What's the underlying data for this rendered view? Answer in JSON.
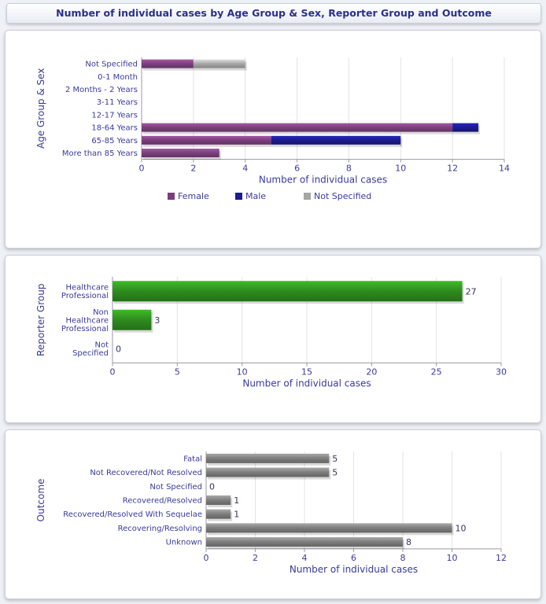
{
  "page_title": "Number of individual cases by Age Group & Sex, Reporter Group and Outcome",
  "chart_data": [
    {
      "type": "bar",
      "stacked": true,
      "orientation": "horizontal",
      "ylabel": "Age Group & Sex",
      "xlabel": "Number of individual cases",
      "categories": [
        "Not Specified",
        "0-1 Month",
        "2 Months - 2 Years",
        "3-11 Years",
        "12-17 Years",
        "18-64 Years",
        "65-85 Years",
        "More than 85 Years"
      ],
      "series": [
        {
          "name": "Female",
          "color": "#7b3f7c",
          "values": [
            2,
            0,
            0,
            0,
            0,
            12,
            5,
            3
          ]
        },
        {
          "name": "Male",
          "color": "#1c1c8c",
          "values": [
            0,
            0,
            0,
            0,
            0,
            1,
            5,
            0
          ]
        },
        {
          "name": "Not Specified",
          "color": "#a6a6a6",
          "values": [
            2,
            0,
            0,
            0,
            0,
            0,
            0,
            0
          ]
        }
      ],
      "xlim": [
        0,
        14
      ],
      "xticks": [
        0,
        2,
        4,
        6,
        8,
        10,
        12,
        14
      ],
      "legend": "bottom",
      "grid": true,
      "data_labels": false
    },
    {
      "type": "bar",
      "orientation": "horizontal",
      "ylabel": "Reporter Group",
      "xlabel": "Number of individual cases",
      "categories": [
        [
          "Healthcare",
          "Professional"
        ],
        [
          "Non",
          "Healthcare",
          "Professional"
        ],
        [
          "Not",
          "Specified"
        ]
      ],
      "values": [
        27,
        3,
        0
      ],
      "color": "#2e8b1e",
      "xlim": [
        0,
        30
      ],
      "xticks": [
        0,
        5,
        10,
        15,
        20,
        25,
        30
      ],
      "grid": true,
      "data_labels": true
    },
    {
      "type": "bar",
      "orientation": "horizontal",
      "ylabel": "Outcome",
      "xlabel": "Number of individual cases",
      "categories": [
        "Fatal",
        "Not Recovered/Not Resolved",
        "Not Specified",
        "Recovered/Resolved",
        "Recovered/Resolved With Sequelae",
        "Recovering/Resolving",
        "Unknown"
      ],
      "values": [
        5,
        5,
        0,
        1,
        1,
        10,
        8
      ],
      "color": "#7d7d7d",
      "xlim": [
        0,
        12
      ],
      "xticks": [
        0,
        2,
        4,
        6,
        8,
        10,
        12
      ],
      "grid": true,
      "data_labels": true
    }
  ]
}
